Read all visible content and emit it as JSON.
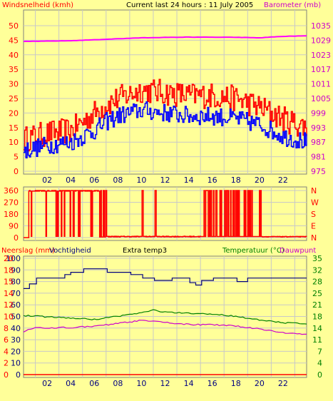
{
  "chart_data": [
    {
      "type": "line",
      "title": "Current last 24 hours : 11 July 2005",
      "left_axis_label": "Windsnelheid (kmh)",
      "right_axis_label": "Barometer (mb)",
      "x_ticks": [
        "02",
        "04",
        "06",
        "08",
        "10",
        "12",
        "14",
        "16",
        "18",
        "20",
        "22"
      ],
      "y_left_ticks": [
        "0",
        "5",
        "10",
        "15",
        "20",
        "25",
        "30",
        "35",
        "40",
        "45",
        "50"
      ],
      "y_left_range": [
        0,
        50
      ],
      "y_right_ticks": [
        "975",
        "981",
        "987",
        "993",
        "999",
        "1005",
        "1011",
        "1017",
        "1023",
        "1029",
        "1035"
      ],
      "y_right_range": [
        975,
        1035
      ],
      "colors": {
        "gust": "#ff0000",
        "wind": "#0000ff",
        "barometer": "#ff00ff"
      },
      "barometer_anchors": [
        [
          0,
          1028.5
        ],
        [
          4,
          1028.8
        ],
        [
          6,
          1029.2
        ],
        [
          8,
          1029.6
        ],
        [
          10,
          1030.0
        ],
        [
          14,
          1030.3
        ],
        [
          18,
          1030.2
        ],
        [
          20,
          1030.0
        ],
        [
          22,
          1030.6
        ],
        [
          24,
          1030.8
        ]
      ],
      "gust_anchors": [
        [
          0,
          11
        ],
        [
          2,
          13
        ],
        [
          4,
          14
        ],
        [
          5,
          17
        ],
        [
          6,
          20
        ],
        [
          7,
          23
        ],
        [
          8,
          25
        ],
        [
          10,
          28
        ],
        [
          12,
          27
        ],
        [
          14,
          26
        ],
        [
          16,
          26
        ],
        [
          18,
          25
        ],
        [
          20,
          22
        ],
        [
          22,
          18
        ],
        [
          24,
          15
        ]
      ],
      "wind_anchors": [
        [
          0,
          7
        ],
        [
          2,
          9
        ],
        [
          4,
          10
        ],
        [
          5,
          12
        ],
        [
          6,
          14
        ],
        [
          7,
          17
        ],
        [
          8,
          19
        ],
        [
          10,
          21
        ],
        [
          12,
          20
        ],
        [
          14,
          19
        ],
        [
          16,
          19
        ],
        [
          18,
          18
        ],
        [
          20,
          16
        ],
        [
          22,
          12
        ],
        [
          24,
          10
        ]
      ]
    },
    {
      "type": "line",
      "left_ticks": [
        "0",
        "90",
        "180",
        "270",
        "360"
      ],
      "right_ticks": [
        "N",
        "E",
        "S",
        "W",
        "N"
      ],
      "y_range": [
        0,
        360
      ],
      "color": "#ff0000"
    },
    {
      "type": "line",
      "left_axis_label": "Neerslag (mm)",
      "left_axis_label_2": "Vochtigheid",
      "center_label": "Extra temp3",
      "right_axis_label": "Temperatuur (°C)",
      "right_axis_label_2": "Dauwpunt",
      "y_left_ticks": [
        "0",
        "10",
        "20",
        "30",
        "40",
        "50",
        "60",
        "70",
        "80",
        "90",
        "100"
      ],
      "y_left_ticks_rain": [
        "0",
        "2",
        "4",
        "6",
        "8",
        "10",
        "12",
        "14",
        "15",
        "18",
        "20"
      ],
      "y_left_range": [
        0,
        100
      ],
      "y_right_ticks": [
        "0",
        "4",
        "7",
        "11",
        "14",
        "18",
        "21",
        "25",
        "28",
        "32",
        "35"
      ],
      "y_right_range": [
        0,
        35
      ],
      "colors": {
        "humidity": "#000080",
        "temperature": "#008000",
        "dewpoint": "#cc00cc",
        "rain": "#ff0000"
      },
      "humidity_steps": [
        [
          0,
          74
        ],
        [
          0.5,
          78
        ],
        [
          1,
          83
        ],
        [
          3,
          83
        ],
        [
          3.5,
          86
        ],
        [
          4,
          88
        ],
        [
          5,
          91
        ],
        [
          7,
          88
        ],
        [
          9,
          86
        ],
        [
          10,
          83
        ],
        [
          11,
          81
        ],
        [
          12.5,
          83
        ],
        [
          14,
          79
        ],
        [
          14.5,
          77
        ],
        [
          15,
          81
        ],
        [
          16,
          83
        ],
        [
          18,
          80
        ],
        [
          19,
          83
        ],
        [
          24,
          83
        ]
      ],
      "temperature_anchors": [
        [
          0,
          17.8
        ],
        [
          4,
          17.0
        ],
        [
          6,
          16.6
        ],
        [
          8,
          17.6
        ],
        [
          10,
          18.6
        ],
        [
          11,
          19.4
        ],
        [
          12,
          18.8
        ],
        [
          14,
          18.4
        ],
        [
          16,
          18.2
        ],
        [
          18,
          17.6
        ],
        [
          20,
          16.4
        ],
        [
          22,
          15.6
        ],
        [
          24,
          15.4
        ]
      ],
      "dewpoint_anchors": [
        [
          0,
          13.0
        ],
        [
          1,
          14.0
        ],
        [
          4,
          14.2
        ],
        [
          6,
          14.5
        ],
        [
          8,
          15.4
        ],
        [
          10,
          16.3
        ],
        [
          12,
          15.7
        ],
        [
          14,
          15.1
        ],
        [
          16,
          15.0
        ],
        [
          18,
          14.6
        ],
        [
          20,
          13.8
        ],
        [
          22,
          12.6
        ],
        [
          24,
          12.1
        ]
      ]
    }
  ]
}
